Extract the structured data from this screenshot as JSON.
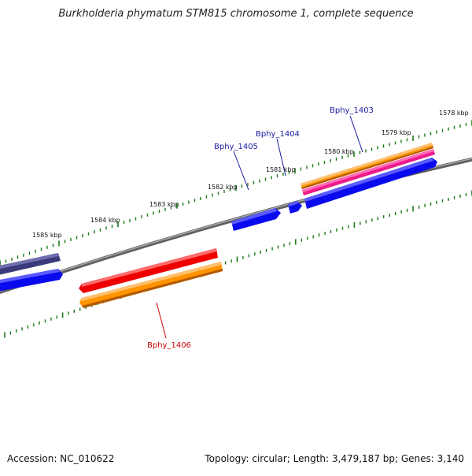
{
  "title": "Burkholderia phymatum STM815 chromosome 1, complete sequence",
  "footer": {
    "accession": "Accession: NC_010622",
    "summary": "Topology: circular; Length: 3,479,187 bp; Genes: 3,140"
  },
  "colors": {
    "background": "#ffffff",
    "backbone": "#808080",
    "tick": "#1a7a1a",
    "blue_gene": "#0a0aee",
    "navy_gene": "#3a3a7a",
    "red_gene": "#ee0000",
    "orange_gene": "#ff9400",
    "pink_gene": "#ee1a8c",
    "label_blue": "#1a1aa0",
    "label_red": "#cc0000"
  },
  "scale_labels": [
    "1578 kbp",
    "1579 kbp",
    "1580 kbp",
    "1581 kbp",
    "1582 kbp",
    "1583 kbp",
    "1584 kbp",
    "1585 kbp"
  ],
  "gene_labels": [
    {
      "text": "Bphy_1403",
      "color": "label_blue"
    },
    {
      "text": "Bphy_1404",
      "color": "label_blue"
    },
    {
      "text": "Bphy_1405",
      "color": "label_blue"
    },
    {
      "text": "Bphy_1406",
      "color": "label_red"
    }
  ]
}
